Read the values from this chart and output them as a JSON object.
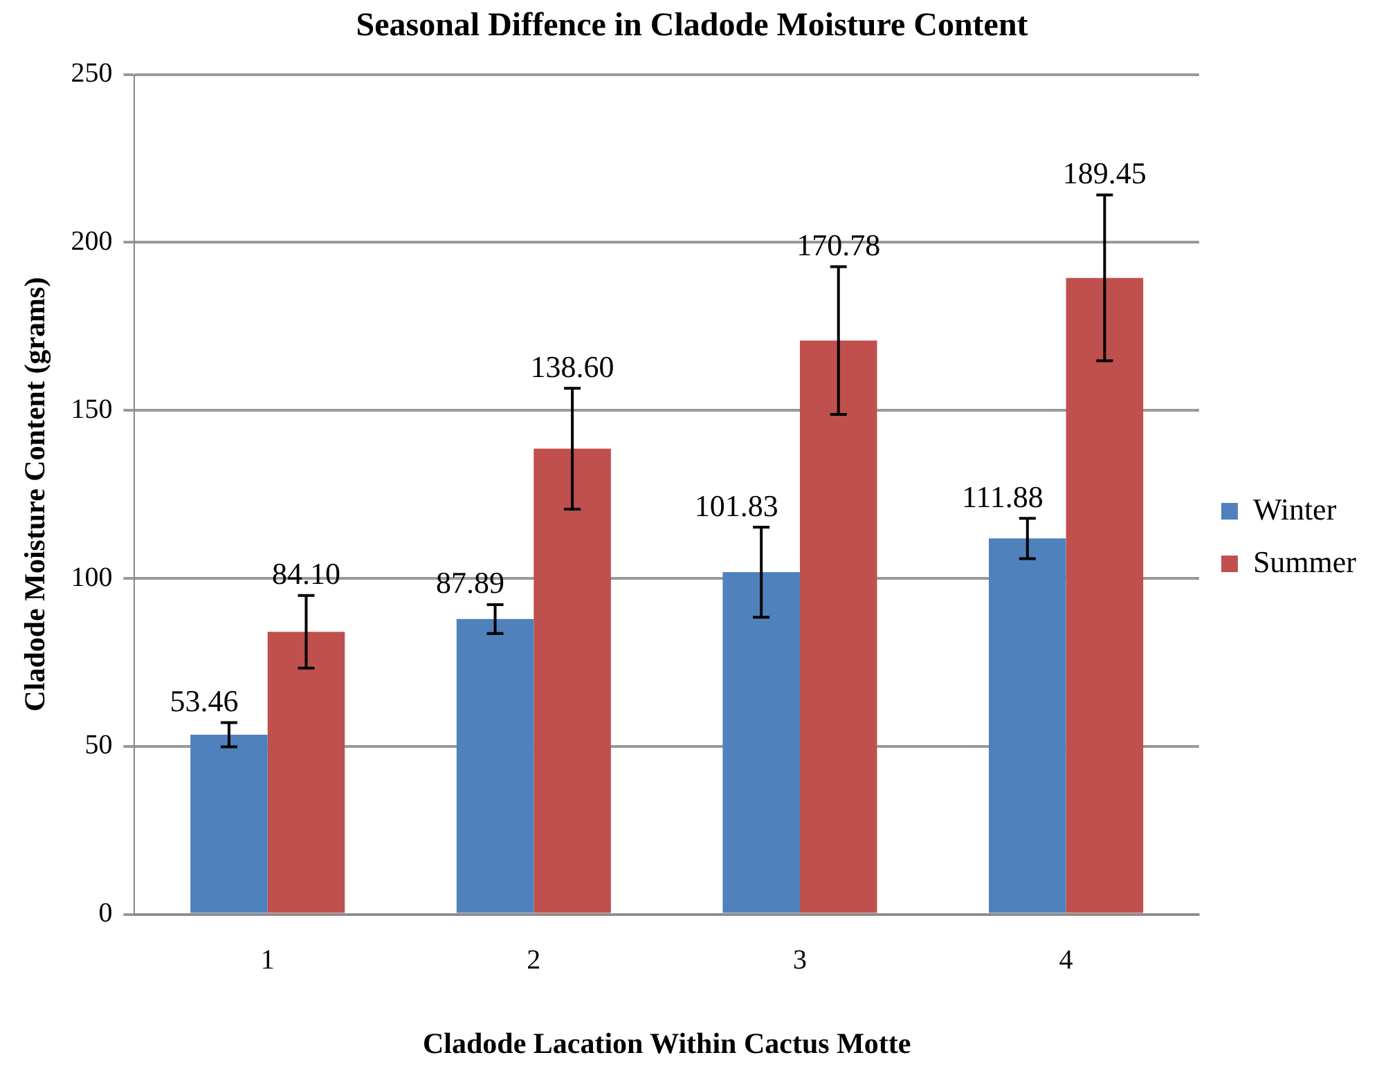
{
  "chart_data": {
    "type": "bar",
    "title": "Seasonal Diffence in Cladode Moisture Content",
    "xlabel": "Cladode Lacation Within Cactus Motte",
    "ylabel": "Cladode Moisture Content (grams)",
    "categories": [
      "1",
      "2",
      "3",
      "4"
    ],
    "series": [
      {
        "name": "Winter",
        "color": "#4f81bd",
        "values": [
          53.46,
          87.89,
          101.83,
          111.88
        ],
        "value_labels": [
          "53.46",
          "87.89",
          "101.83",
          "111.88"
        ],
        "errors": [
          3.6,
          4.3,
          13.4,
          6
        ]
      },
      {
        "name": "Summer",
        "color": "#c0504d",
        "values": [
          84.1,
          138.6,
          170.78,
          189.45
        ],
        "value_labels": [
          "84.10",
          "138.60",
          "170.78",
          "189.45"
        ],
        "errors": [
          10.8,
          18,
          22,
          24.7
        ]
      }
    ],
    "ylim": [
      0,
      250
    ],
    "yticks": [
      0,
      50,
      100,
      150,
      200,
      250
    ],
    "grid": "y",
    "legend": "right"
  }
}
